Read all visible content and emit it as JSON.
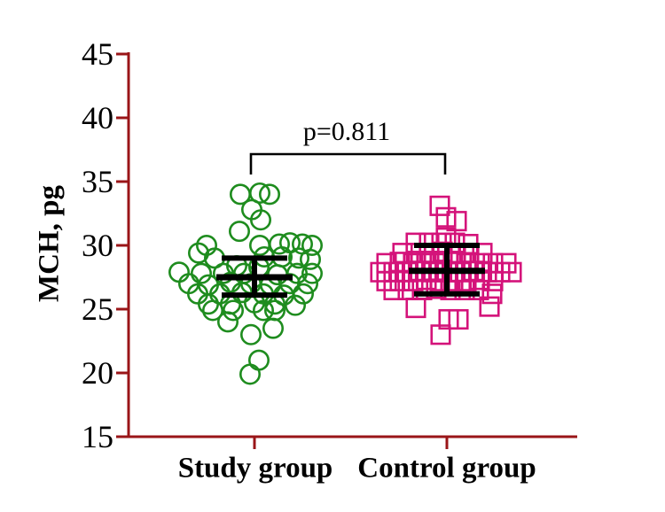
{
  "colors": {
    "axis": "#9a1518",
    "study_marker": "#1e8c1e",
    "control_marker": "#d4137a",
    "stat_lines": "#000000",
    "text": "#000000",
    "background": "#ffffff"
  },
  "chart_data": {
    "type": "scatter",
    "subtype": "beeswarm-dot-plot-with-mean-error-bars",
    "title": "",
    "xlabel": "",
    "ylabel": "MCH, pg",
    "ylim": [
      15,
      45
    ],
    "yticks": [
      45,
      40,
      35,
      30,
      25,
      20,
      15
    ],
    "categories": [
      "Study group",
      "Control group"
    ],
    "legend": "none",
    "grid": "off",
    "comparison": {
      "label": "p=0.811",
      "between": [
        "Study group",
        "Control group"
      ]
    },
    "groups": [
      {
        "name": "Study group",
        "marker": "open-circle",
        "color": "#1e8c1e",
        "stats": {
          "mean": 27.5,
          "upper": 29.0,
          "lower": 26.1
        },
        "points": [
          {
            "v": 34.0,
            "dx": -16
          },
          {
            "v": 34.1,
            "dx": 6
          },
          {
            "v": 34.0,
            "dx": 17
          },
          {
            "v": 32.8,
            "dx": -3
          },
          {
            "v": 32.0,
            "dx": 7
          },
          {
            "v": 31.1,
            "dx": -17
          },
          {
            "v": 30.0,
            "dx": -54
          },
          {
            "v": 30.0,
            "dx": 6
          },
          {
            "v": 30.1,
            "dx": 28
          },
          {
            "v": 30.2,
            "dx": 40
          },
          {
            "v": 30.1,
            "dx": 54
          },
          {
            "v": 30.0,
            "dx": 65
          },
          {
            "v": 29.4,
            "dx": -63
          },
          {
            "v": 29.0,
            "dx": -45
          },
          {
            "v": 29.1,
            "dx": 11
          },
          {
            "v": 29.1,
            "dx": 31
          },
          {
            "v": 29.0,
            "dx": 50
          },
          {
            "v": 28.9,
            "dx": 63
          },
          {
            "v": 28.4,
            "dx": -20
          },
          {
            "v": 28.3,
            "dx": 5
          },
          {
            "v": 27.9,
            "dx": -85
          },
          {
            "v": 27.8,
            "dx": -60
          },
          {
            "v": 27.8,
            "dx": -35
          },
          {
            "v": 27.8,
            "dx": -12
          },
          {
            "v": 27.7,
            "dx": 26
          },
          {
            "v": 27.8,
            "dx": 48
          },
          {
            "v": 27.8,
            "dx": 65
          },
          {
            "v": 27.0,
            "dx": -74
          },
          {
            "v": 26.9,
            "dx": -52
          },
          {
            "v": 27.1,
            "dx": -27
          },
          {
            "v": 27.0,
            "dx": -4
          },
          {
            "v": 26.9,
            "dx": 18
          },
          {
            "v": 27.0,
            "dx": 40
          },
          {
            "v": 27.0,
            "dx": 60
          },
          {
            "v": 26.2,
            "dx": -64
          },
          {
            "v": 26.2,
            "dx": -39
          },
          {
            "v": 26.3,
            "dx": -14
          },
          {
            "v": 26.2,
            "dx": 10
          },
          {
            "v": 26.1,
            "dx": 33
          },
          {
            "v": 26.2,
            "dx": 55
          },
          {
            "v": 25.4,
            "dx": -52
          },
          {
            "v": 25.4,
            "dx": -27
          },
          {
            "v": 25.5,
            "dx": 0
          },
          {
            "v": 25.4,
            "dx": 23
          },
          {
            "v": 25.3,
            "dx": 46
          },
          {
            "v": 24.9,
            "dx": -47
          },
          {
            "v": 24.9,
            "dx": -24
          },
          {
            "v": 24.9,
            "dx": 10
          },
          {
            "v": 24.9,
            "dx": 23
          },
          {
            "v": 24.0,
            "dx": -30
          },
          {
            "v": 23.5,
            "dx": 21
          },
          {
            "v": 23.0,
            "dx": -4
          },
          {
            "v": 21.0,
            "dx": 5
          },
          {
            "v": 19.9,
            "dx": -5
          }
        ]
      },
      {
        "name": "Control group",
        "marker": "open-square",
        "color": "#d4137a",
        "stats": {
          "mean": 28.0,
          "upper": 30.0,
          "lower": 26.2
        },
        "points": [
          {
            "v": 33.1,
            "dx": -8
          },
          {
            "v": 32.2,
            "dx": -1
          },
          {
            "v": 31.9,
            "dx": 11
          },
          {
            "v": 30.6,
            "dx": -1
          },
          {
            "v": 30.2,
            "dx": -35
          },
          {
            "v": 30.2,
            "dx": -20
          },
          {
            "v": 30.2,
            "dx": -6
          },
          {
            "v": 30.2,
            "dx": 9
          },
          {
            "v": 30.1,
            "dx": 24
          },
          {
            "v": 29.4,
            "dx": -50
          },
          {
            "v": 29.4,
            "dx": -35
          },
          {
            "v": 29.4,
            "dx": -20
          },
          {
            "v": 29.5,
            "dx": -5
          },
          {
            "v": 29.4,
            "dx": 10
          },
          {
            "v": 29.4,
            "dx": 25
          },
          {
            "v": 29.4,
            "dx": 40
          },
          {
            "v": 28.6,
            "dx": -68
          },
          {
            "v": 28.7,
            "dx": -53
          },
          {
            "v": 28.6,
            "dx": -38
          },
          {
            "v": 28.6,
            "dx": -23
          },
          {
            "v": 28.6,
            "dx": -8
          },
          {
            "v": 28.7,
            "dx": 7
          },
          {
            "v": 28.6,
            "dx": 22
          },
          {
            "v": 28.6,
            "dx": 37
          },
          {
            "v": 28.6,
            "dx": 52
          },
          {
            "v": 28.6,
            "dx": 67
          },
          {
            "v": 27.9,
            "dx": -75
          },
          {
            "v": 27.9,
            "dx": -60
          },
          {
            "v": 27.9,
            "dx": -45
          },
          {
            "v": 28.0,
            "dx": -30
          },
          {
            "v": 27.9,
            "dx": -15
          },
          {
            "v": 27.9,
            "dx": 0
          },
          {
            "v": 27.9,
            "dx": 15
          },
          {
            "v": 28.0,
            "dx": 30
          },
          {
            "v": 27.9,
            "dx": 45
          },
          {
            "v": 27.9,
            "dx": 60
          },
          {
            "v": 27.9,
            "dx": 73
          },
          {
            "v": 27.2,
            "dx": -68
          },
          {
            "v": 27.2,
            "dx": -53
          },
          {
            "v": 27.2,
            "dx": -38
          },
          {
            "v": 27.3,
            "dx": -23
          },
          {
            "v": 27.2,
            "dx": -8
          },
          {
            "v": 27.2,
            "dx": 7
          },
          {
            "v": 27.2,
            "dx": 22
          },
          {
            "v": 27.3,
            "dx": 37
          },
          {
            "v": 27.2,
            "dx": 52
          },
          {
            "v": 26.5,
            "dx": -60
          },
          {
            "v": 26.5,
            "dx": -44
          },
          {
            "v": 26.5,
            "dx": -28
          },
          {
            "v": 26.6,
            "dx": -12
          },
          {
            "v": 26.5,
            "dx": 4
          },
          {
            "v": 26.5,
            "dx": 20
          },
          {
            "v": 26.5,
            "dx": 36
          },
          {
            "v": 26.2,
            "dx": 51
          },
          {
            "v": 25.1,
            "dx": -35
          },
          {
            "v": 25.2,
            "dx": 48
          },
          {
            "v": 24.2,
            "dx": 2
          },
          {
            "v": 24.2,
            "dx": 13
          },
          {
            "v": 23.0,
            "dx": -7
          }
        ]
      }
    ]
  }
}
